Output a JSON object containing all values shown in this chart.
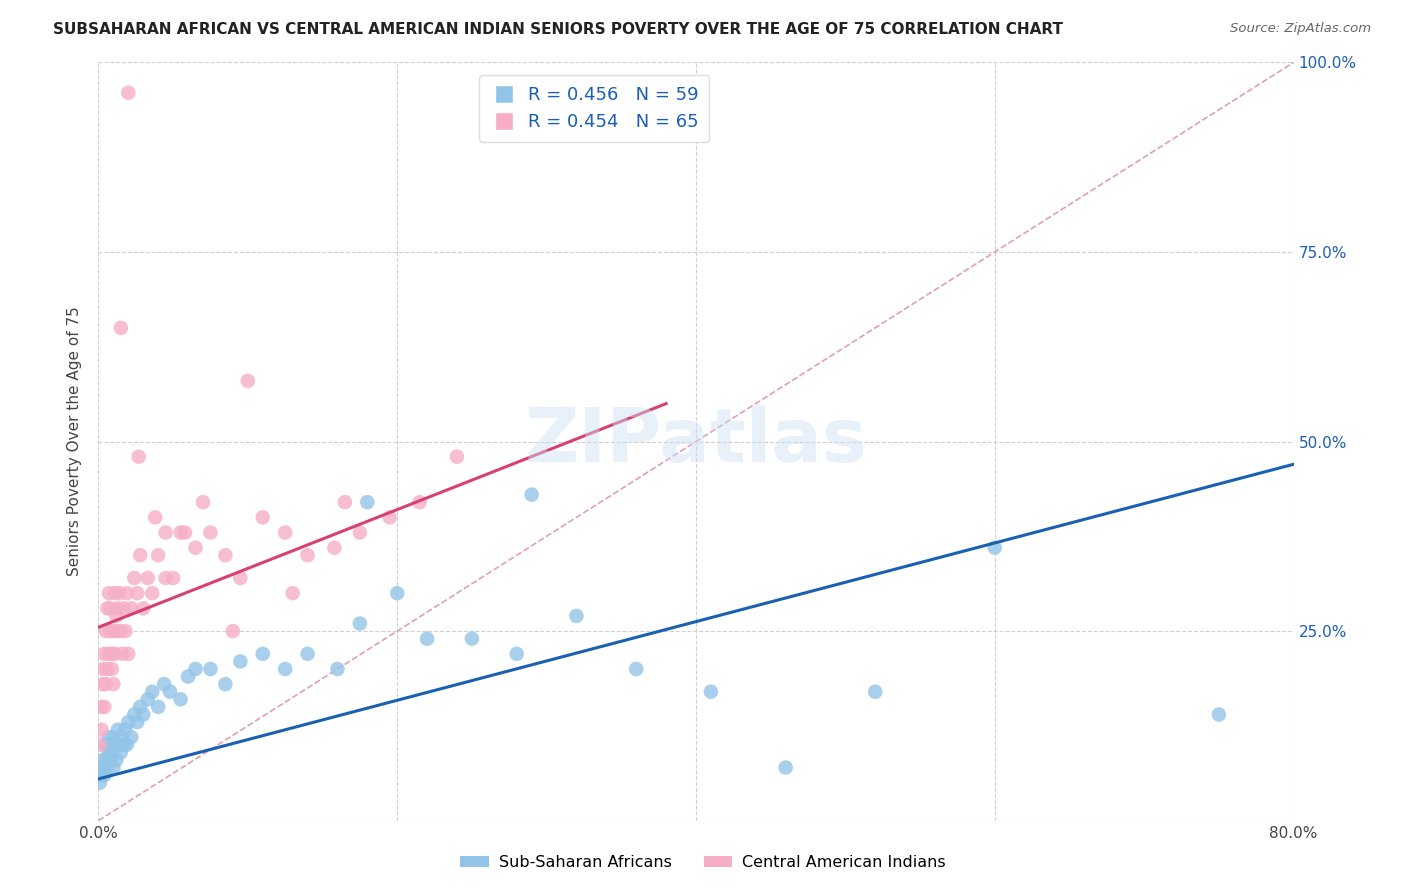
{
  "title": "SUBSAHARAN AFRICAN VS CENTRAL AMERICAN INDIAN SENIORS POVERTY OVER THE AGE OF 75 CORRELATION CHART",
  "source": "Source: ZipAtlas.com",
  "ylabel": "Seniors Poverty Over the Age of 75",
  "blue_R": 0.456,
  "blue_N": 59,
  "pink_R": 0.454,
  "pink_N": 65,
  "blue_label": "Sub-Saharan Africans",
  "pink_label": "Central American Indians",
  "blue_color": "#92c4e8",
  "pink_color": "#f5aec5",
  "blue_line_color": "#1a60b0",
  "pink_line_color": "#d84070",
  "diag_color": "#e0a0b0",
  "right_tick_color": "#1a5eb8",
  "background_color": "#ffffff",
  "watermark": "ZIPatlas",
  "xlim": [
    0.0,
    0.8
  ],
  "ylim": [
    0.0,
    1.0
  ],
  "blue_x": [
    0.001,
    0.002,
    0.003,
    0.003,
    0.004,
    0.005,
    0.005,
    0.006,
    0.007,
    0.007,
    0.008,
    0.008,
    0.009,
    0.01,
    0.01,
    0.011,
    0.012,
    0.013,
    0.014,
    0.015,
    0.016,
    0.017,
    0.018,
    0.019,
    0.02,
    0.022,
    0.024,
    0.026,
    0.028,
    0.03,
    0.033,
    0.036,
    0.04,
    0.044,
    0.048,
    0.055,
    0.06,
    0.065,
    0.075,
    0.085,
    0.095,
    0.11,
    0.125,
    0.14,
    0.16,
    0.175,
    0.2,
    0.22,
    0.25,
    0.28,
    0.32,
    0.36,
    0.41,
    0.46,
    0.52,
    0.6,
    0.75,
    0.29,
    0.18
  ],
  "blue_y": [
    0.05,
    0.06,
    0.07,
    0.08,
    0.06,
    0.08,
    0.1,
    0.07,
    0.09,
    0.11,
    0.08,
    0.1,
    0.09,
    0.07,
    0.11,
    0.1,
    0.08,
    0.12,
    0.1,
    0.09,
    0.11,
    0.1,
    0.12,
    0.1,
    0.13,
    0.11,
    0.14,
    0.13,
    0.15,
    0.14,
    0.16,
    0.17,
    0.15,
    0.18,
    0.17,
    0.16,
    0.19,
    0.2,
    0.2,
    0.18,
    0.21,
    0.22,
    0.2,
    0.22,
    0.2,
    0.26,
    0.3,
    0.24,
    0.24,
    0.22,
    0.27,
    0.2,
    0.17,
    0.07,
    0.17,
    0.36,
    0.14,
    0.43,
    0.42
  ],
  "pink_x": [
    0.001,
    0.002,
    0.002,
    0.003,
    0.003,
    0.004,
    0.004,
    0.005,
    0.005,
    0.006,
    0.006,
    0.007,
    0.007,
    0.008,
    0.008,
    0.009,
    0.009,
    0.01,
    0.01,
    0.011,
    0.011,
    0.012,
    0.012,
    0.013,
    0.014,
    0.015,
    0.016,
    0.017,
    0.018,
    0.019,
    0.02,
    0.022,
    0.024,
    0.026,
    0.028,
    0.03,
    0.033,
    0.036,
    0.04,
    0.045,
    0.05,
    0.058,
    0.065,
    0.075,
    0.085,
    0.095,
    0.11,
    0.125,
    0.14,
    0.158,
    0.175,
    0.195,
    0.215,
    0.24,
    0.13,
    0.09,
    0.055,
    0.165,
    0.07,
    0.045,
    0.038,
    0.027,
    0.1,
    0.015,
    0.02
  ],
  "pink_y": [
    0.1,
    0.12,
    0.15,
    0.18,
    0.2,
    0.15,
    0.22,
    0.18,
    0.25,
    0.2,
    0.28,
    0.22,
    0.3,
    0.25,
    0.28,
    0.2,
    0.22,
    0.18,
    0.25,
    0.22,
    0.3,
    0.27,
    0.25,
    0.28,
    0.3,
    0.25,
    0.22,
    0.28,
    0.25,
    0.3,
    0.22,
    0.28,
    0.32,
    0.3,
    0.35,
    0.28,
    0.32,
    0.3,
    0.35,
    0.32,
    0.32,
    0.38,
    0.36,
    0.38,
    0.35,
    0.32,
    0.4,
    0.38,
    0.35,
    0.36,
    0.38,
    0.4,
    0.42,
    0.48,
    0.3,
    0.25,
    0.38,
    0.42,
    0.42,
    0.38,
    0.4,
    0.48,
    0.58,
    0.65,
    0.96
  ],
  "blue_line_x": [
    0.0,
    0.8
  ],
  "blue_line_y": [
    0.055,
    0.47
  ],
  "pink_line_x": [
    0.0,
    0.38
  ],
  "pink_line_y": [
    0.255,
    0.55
  ]
}
